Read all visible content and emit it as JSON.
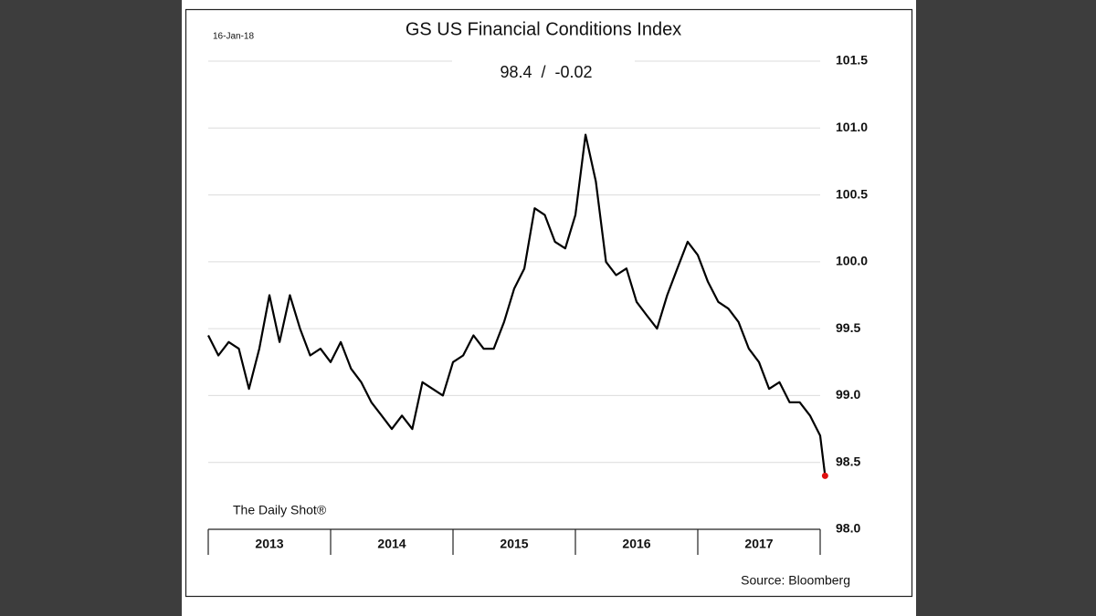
{
  "chart_data": {
    "type": "line",
    "title": "GS US Financial Conditions Index",
    "subtitle": "98.4  /  -0.02",
    "date": "16-Jan-18",
    "watermark": "The Daily Shot®",
    "source": "Source: Bloomberg",
    "x": [
      2013,
      2013.083,
      2013.167,
      2013.25,
      2013.333,
      2013.417,
      2013.5,
      2013.583,
      2013.667,
      2013.75,
      2013.833,
      2013.917,
      2014,
      2014.083,
      2014.167,
      2014.25,
      2014.333,
      2014.417,
      2014.5,
      2014.583,
      2014.667,
      2014.75,
      2014.833,
      2014.917,
      2015,
      2015.083,
      2015.167,
      2015.25,
      2015.333,
      2015.417,
      2015.5,
      2015.583,
      2015.667,
      2015.75,
      2015.833,
      2015.917,
      2016,
      2016.083,
      2016.167,
      2016.25,
      2016.333,
      2016.417,
      2016.5,
      2016.583,
      2016.667,
      2016.75,
      2016.833,
      2016.917,
      2017,
      2017.083,
      2017.167,
      2017.25,
      2017.333,
      2017.417,
      2017.5,
      2017.583,
      2017.667,
      2017.75,
      2017.833,
      2017.917,
      2018,
      2018.04
    ],
    "series": [
      {
        "name": "GS US Financial Conditions Index",
        "color": "#000000",
        "marker_color": "#e01010",
        "values": [
          99.45,
          99.3,
          99.4,
          99.35,
          99.05,
          99.35,
          99.75,
          99.4,
          99.75,
          99.5,
          99.3,
          99.35,
          99.25,
          99.4,
          99.2,
          99.1,
          98.95,
          98.85,
          98.75,
          98.85,
          98.75,
          99.1,
          99.05,
          99.0,
          99.25,
          99.3,
          99.45,
          99.35,
          99.35,
          99.55,
          99.8,
          99.95,
          100.4,
          100.35,
          100.15,
          100.1,
          100.35,
          100.95,
          100.6,
          100.0,
          99.9,
          99.95,
          99.7,
          99.6,
          99.5,
          99.75,
          99.95,
          100.15,
          100.05,
          99.85,
          99.7,
          99.65,
          99.55,
          99.35,
          99.25,
          99.05,
          99.1,
          98.95,
          98.95,
          98.85,
          98.7,
          98.4
        ]
      }
    ],
    "categories": [
      "2013",
      "2014",
      "2015",
      "2016",
      "2017"
    ],
    "xlim": [
      2013,
      2018
    ],
    "xticks": [
      2013,
      2014,
      2015,
      2016,
      2017,
      2018
    ],
    "ylim": [
      98.0,
      101.5
    ],
    "yticks": [
      101.5,
      {
        "value": 101,
        "label": "101.0"
      },
      100.5,
      {
        "value": 100,
        "label": "100.0"
      },
      99.5,
      {
        "value": 99,
        "label": "99.0"
      },
      98.5,
      {
        "value": 98,
        "label": "98.0"
      }
    ],
    "grid": true
  }
}
